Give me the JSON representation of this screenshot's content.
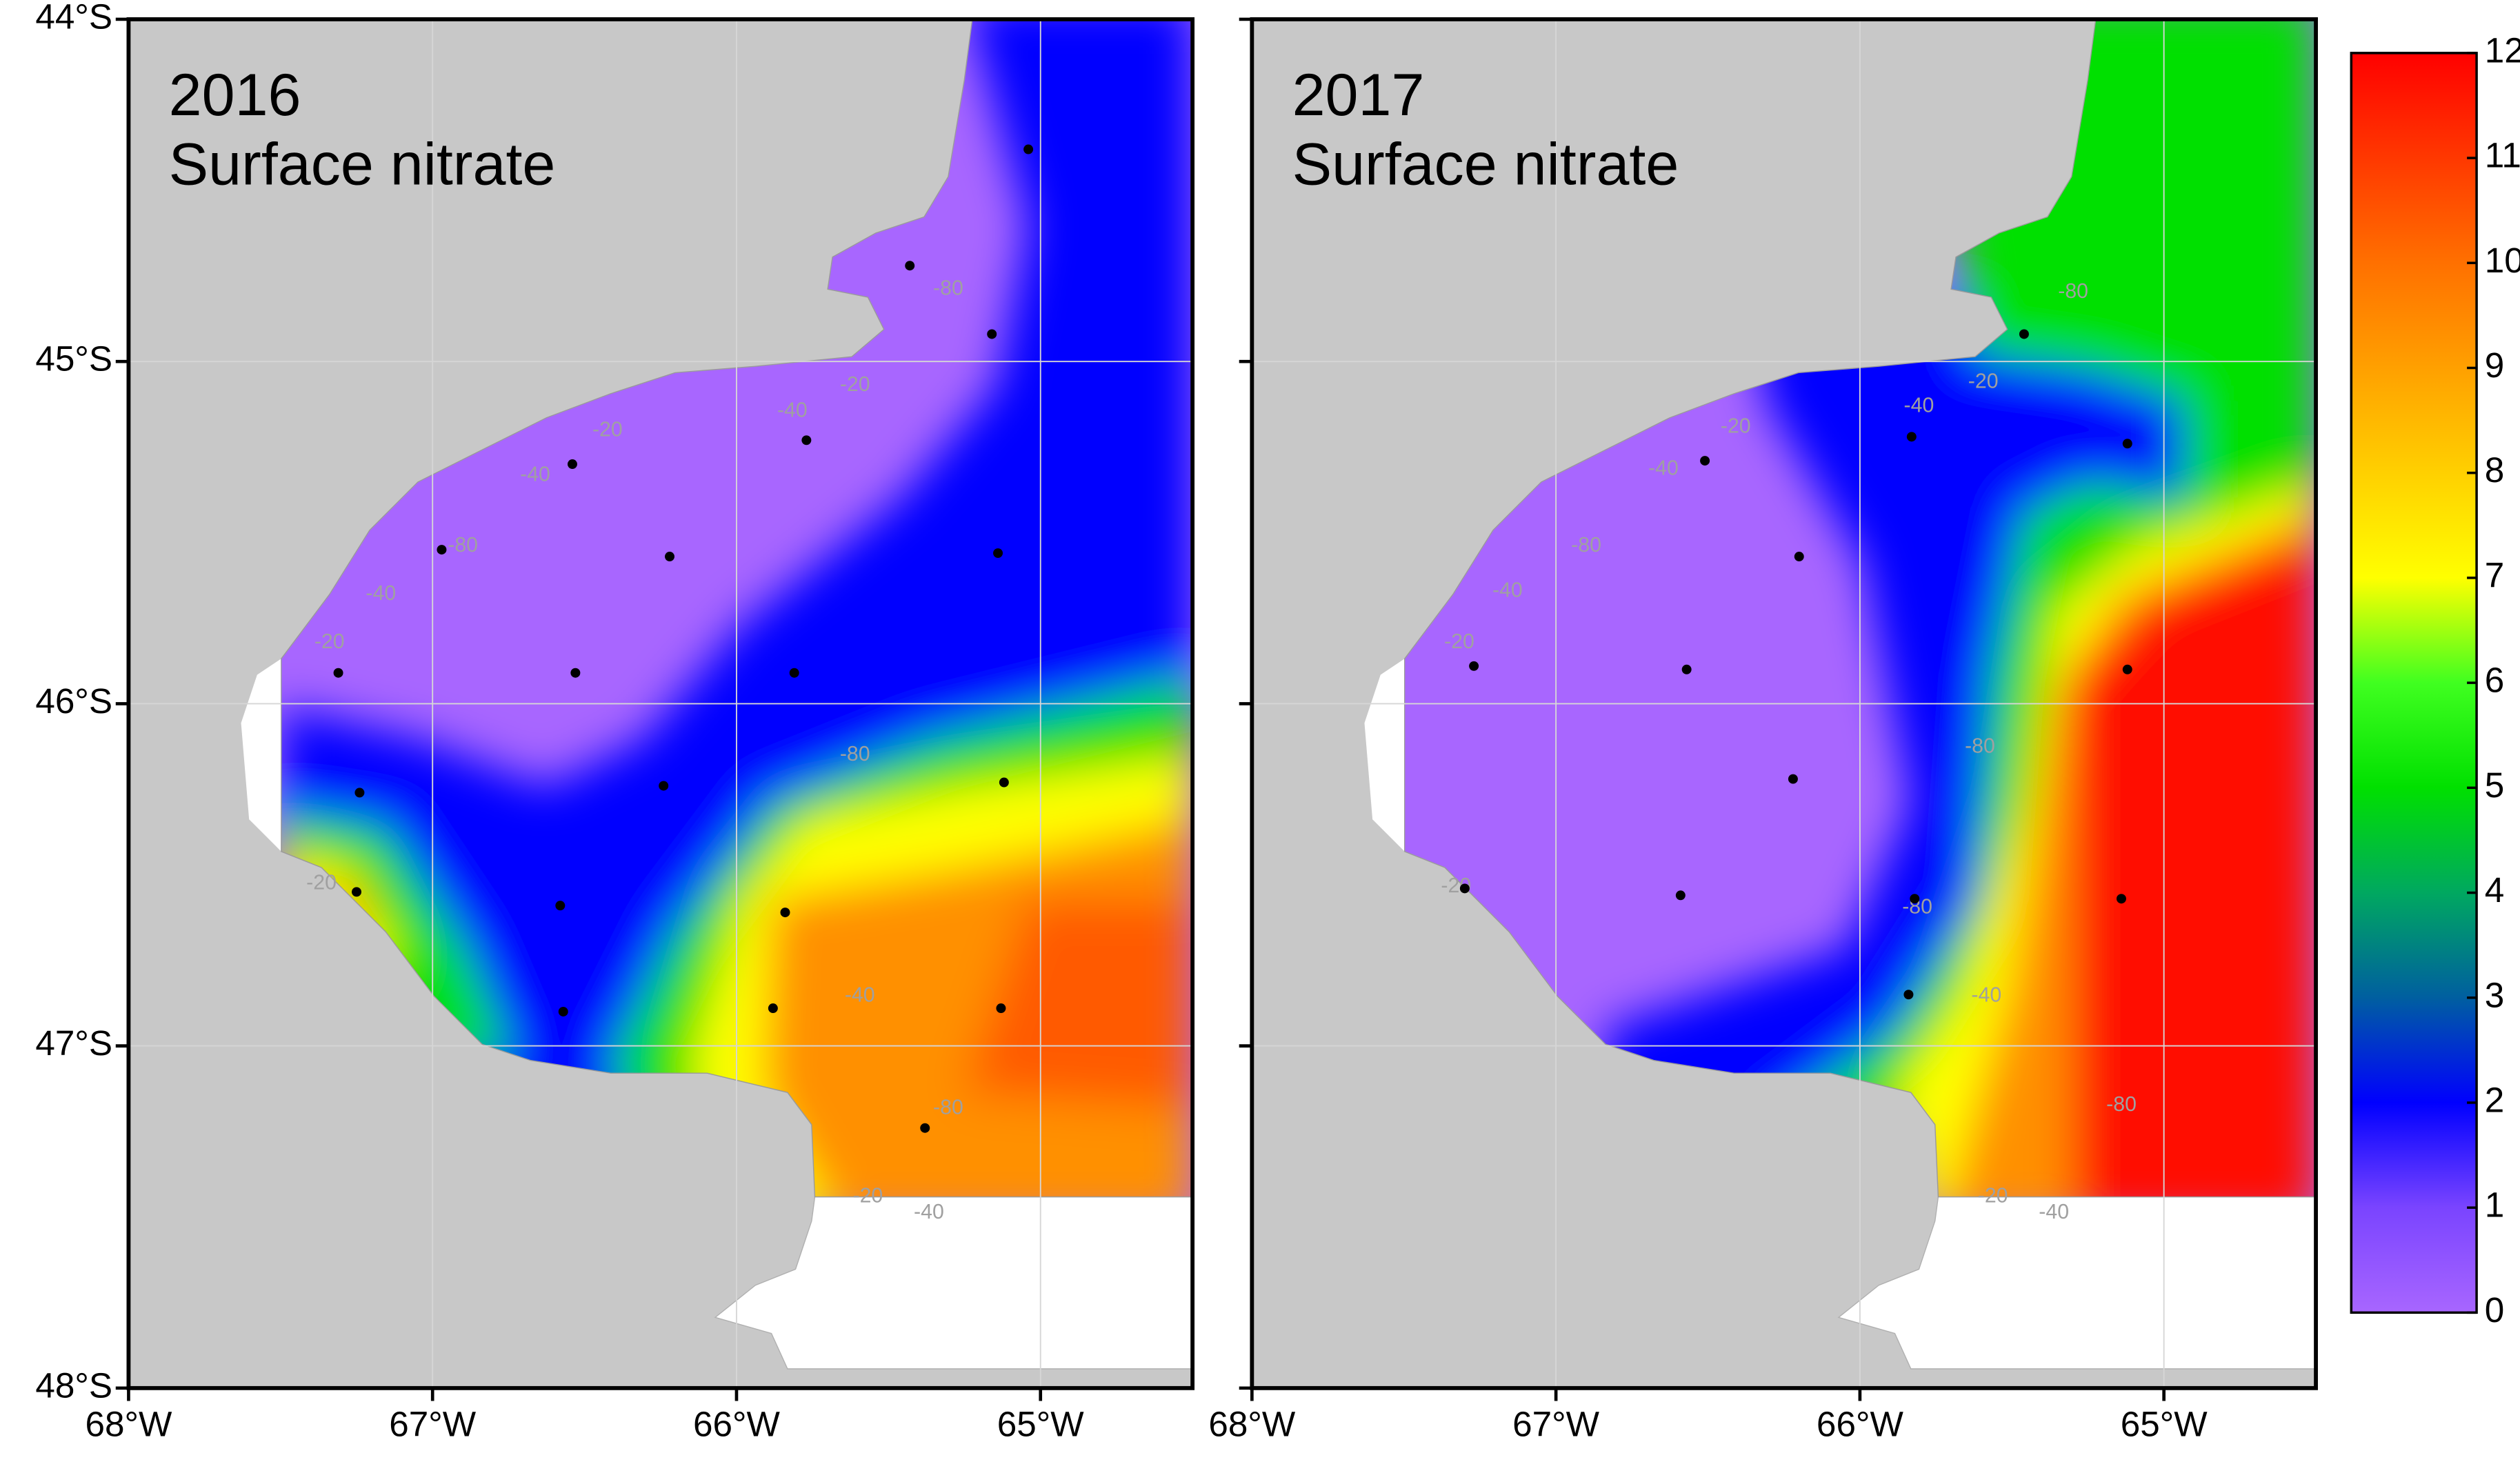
{
  "panels": [
    {
      "year": "2016",
      "variable": "Surface nitrate",
      "stations": [
        [
          -65.04,
          -44.38
        ],
        [
          -65.43,
          -44.72
        ],
        [
          -65.16,
          -44.92
        ],
        [
          -65.77,
          -45.23
        ],
        [
          -66.54,
          -45.3
        ],
        [
          -66.97,
          -45.55
        ],
        [
          -66.22,
          -45.57
        ],
        [
          -65.14,
          -45.56
        ],
        [
          -67.31,
          -45.91
        ],
        [
          -66.53,
          -45.91
        ],
        [
          -65.81,
          -45.91
        ],
        [
          -67.24,
          -46.26
        ],
        [
          -66.24,
          -46.24
        ],
        [
          -65.12,
          -46.23
        ],
        [
          -67.25,
          -46.55
        ],
        [
          -66.58,
          -46.59
        ],
        [
          -65.84,
          -46.61
        ],
        [
          -66.57,
          -46.9
        ],
        [
          -65.88,
          -46.89
        ],
        [
          -65.13,
          -46.89
        ],
        [
          -65.38,
          -47.24
        ]
      ],
      "contour_labels": [
        "-80",
        "-20",
        "-40",
        "-20",
        "-40",
        "-80",
        "-40",
        "-20",
        "-80",
        "-20",
        "-40",
        "-80",
        "-20",
        "-40"
      ]
    },
    {
      "year": "2017",
      "variable": "Surface nitrate",
      "stations": [
        [
          -65.46,
          -44.92
        ],
        [
          -65.83,
          -45.22
        ],
        [
          -65.12,
          -45.24
        ],
        [
          -66.51,
          -45.29
        ],
        [
          -66.2,
          -45.57
        ],
        [
          -67.27,
          -45.89
        ],
        [
          -66.57,
          -45.9
        ],
        [
          -65.12,
          -45.9
        ],
        [
          -66.22,
          -46.22
        ],
        [
          -67.3,
          -46.54
        ],
        [
          -66.59,
          -46.56
        ],
        [
          -65.82,
          -46.57
        ],
        [
          -65.14,
          -46.57
        ],
        [
          -65.84,
          -46.85
        ]
      ],
      "contour_labels": [
        "-80",
        "-20",
        "-40",
        "-20",
        "-40",
        "-80",
        "-40",
        "-20",
        "-80",
        "-20",
        "-80",
        "-40",
        "-80",
        "-20",
        "-40"
      ]
    }
  ],
  "xlim": [
    -68,
    -64.5
  ],
  "ylim": [
    -48,
    -44
  ],
  "xticks": [
    {
      "value": -68,
      "label": "68°W"
    },
    {
      "value": -67,
      "label": "67°W"
    },
    {
      "value": -66,
      "label": "66°W"
    },
    {
      "value": -65,
      "label": "65°W"
    }
  ],
  "yticks": [
    {
      "value": -44,
      "label": "44°S"
    },
    {
      "value": -45,
      "label": "45°S"
    },
    {
      "value": -46,
      "label": "46°S"
    },
    {
      "value": -47,
      "label": "47°S"
    },
    {
      "value": -48,
      "label": "48°S"
    }
  ],
  "grid": true,
  "colorbar": {
    "lim": [
      0,
      12
    ],
    "ticks": [
      0,
      1,
      2,
      3,
      4,
      5,
      6,
      7,
      8,
      9,
      10,
      11,
      12
    ],
    "colors": [
      "#a866ff",
      "#7a44ff",
      "#0000ff",
      "#005fa0",
      "#00a860",
      "#00e000",
      "#40ff20",
      "#ffff00",
      "#ffd000",
      "#ffa000",
      "#ff7000",
      "#ff3800",
      "#ff0000"
    ]
  }
}
